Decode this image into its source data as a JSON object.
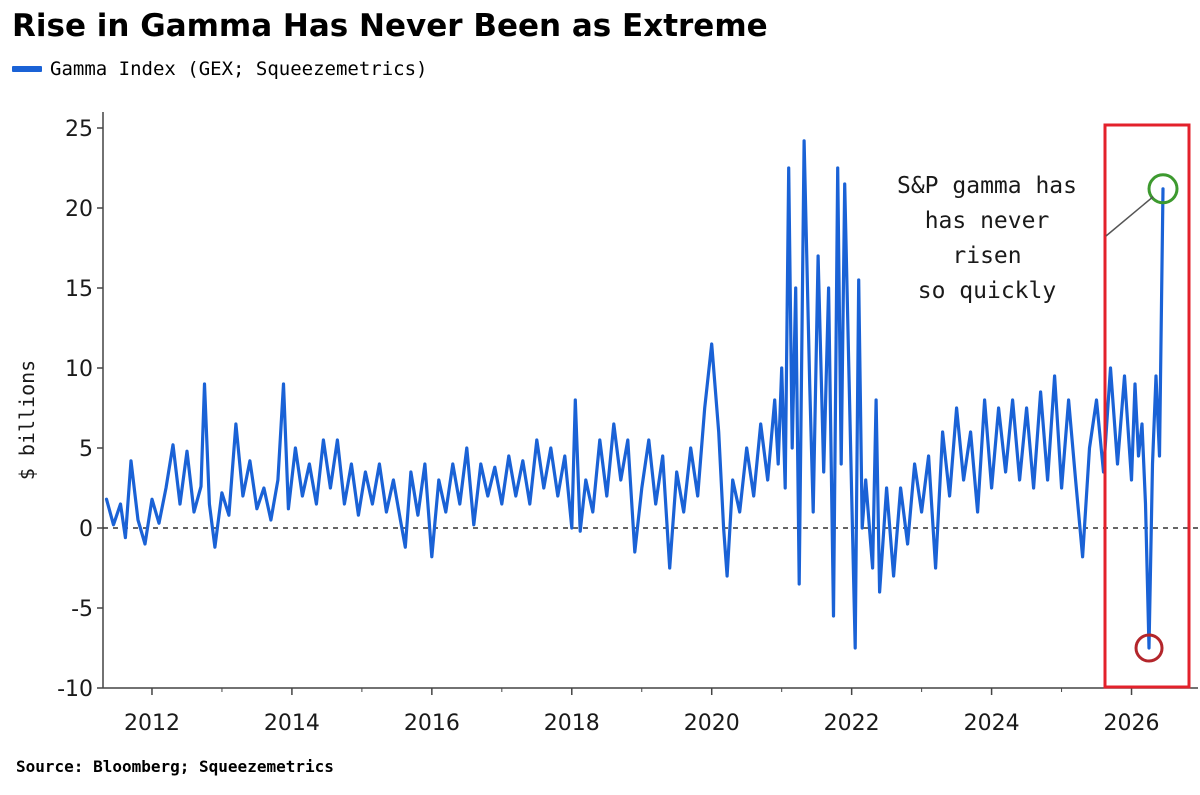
{
  "chart_data": {
    "type": "line",
    "title": "Rise in Gamma Has Never Been as Extreme",
    "ylabel": "$ billions",
    "xlabel": "",
    "ylim": [
      -10,
      26
    ],
    "xlim": [
      2011.3,
      2026.95
    ],
    "yticks": [
      "25",
      "20",
      "15",
      "10",
      "5",
      "0",
      "-5",
      "-10"
    ],
    "yticks_values": [
      25,
      20,
      15,
      10,
      5,
      0,
      -5,
      -10
    ],
    "xticks": [
      "2012",
      "2014",
      "2016",
      "2018",
      "2020",
      "2022",
      "2024",
      "2026"
    ],
    "xticks_values": [
      2012,
      2014,
      2016,
      2018,
      2020,
      2022,
      2024,
      2026
    ],
    "grid": false,
    "zero_line": "dashed",
    "legend_position": "top-left",
    "series": [
      {
        "name": "Gamma Index (GEX; Squeezemetrics)",
        "color": "#1a62d6",
        "points": [
          [
            2011.35,
            1.8
          ],
          [
            2011.45,
            0.2
          ],
          [
            2011.55,
            1.5
          ],
          [
            2011.62,
            -0.6
          ],
          [
            2011.7,
            4.2
          ],
          [
            2011.8,
            0.5
          ],
          [
            2011.9,
            -1.0
          ],
          [
            2012.0,
            1.8
          ],
          [
            2012.1,
            0.3
          ],
          [
            2012.2,
            2.5
          ],
          [
            2012.3,
            5.2
          ],
          [
            2012.4,
            1.5
          ],
          [
            2012.5,
            4.8
          ],
          [
            2012.6,
            1.0
          ],
          [
            2012.7,
            2.6
          ],
          [
            2012.75,
            9.0
          ],
          [
            2012.82,
            1.5
          ],
          [
            2012.9,
            -1.2
          ],
          [
            2013.0,
            2.2
          ],
          [
            2013.1,
            0.8
          ],
          [
            2013.2,
            6.5
          ],
          [
            2013.3,
            2.0
          ],
          [
            2013.4,
            4.2
          ],
          [
            2013.5,
            1.2
          ],
          [
            2013.6,
            2.5
          ],
          [
            2013.7,
            0.5
          ],
          [
            2013.8,
            3.0
          ],
          [
            2013.88,
            9.0
          ],
          [
            2013.95,
            1.2
          ],
          [
            2014.05,
            5.0
          ],
          [
            2014.15,
            2.0
          ],
          [
            2014.25,
            4.0
          ],
          [
            2014.35,
            1.5
          ],
          [
            2014.45,
            5.5
          ],
          [
            2014.55,
            2.5
          ],
          [
            2014.65,
            5.5
          ],
          [
            2014.75,
            1.5
          ],
          [
            2014.85,
            4.0
          ],
          [
            2014.95,
            0.8
          ],
          [
            2015.05,
            3.5
          ],
          [
            2015.15,
            1.5
          ],
          [
            2015.25,
            4.0
          ],
          [
            2015.35,
            1.0
          ],
          [
            2015.45,
            3.0
          ],
          [
            2015.55,
            0.5
          ],
          [
            2015.62,
            -1.2
          ],
          [
            2015.7,
            3.5
          ],
          [
            2015.8,
            0.8
          ],
          [
            2015.9,
            4.0
          ],
          [
            2016.0,
            -1.8
          ],
          [
            2016.1,
            3.0
          ],
          [
            2016.2,
            1.0
          ],
          [
            2016.3,
            4.0
          ],
          [
            2016.4,
            1.5
          ],
          [
            2016.5,
            5.0
          ],
          [
            2016.6,
            0.2
          ],
          [
            2016.7,
            4.0
          ],
          [
            2016.8,
            2.0
          ],
          [
            2016.9,
            3.8
          ],
          [
            2017.0,
            1.5
          ],
          [
            2017.1,
            4.5
          ],
          [
            2017.2,
            2.0
          ],
          [
            2017.3,
            4.2
          ],
          [
            2017.4,
            1.5
          ],
          [
            2017.5,
            5.5
          ],
          [
            2017.6,
            2.5
          ],
          [
            2017.7,
            5.0
          ],
          [
            2017.8,
            2.0
          ],
          [
            2017.9,
            4.5
          ],
          [
            2018.0,
            0.0
          ],
          [
            2018.05,
            8.0
          ],
          [
            2018.12,
            -0.2
          ],
          [
            2018.2,
            3.0
          ],
          [
            2018.3,
            1.0
          ],
          [
            2018.4,
            5.5
          ],
          [
            2018.5,
            2.0
          ],
          [
            2018.6,
            6.5
          ],
          [
            2018.7,
            3.0
          ],
          [
            2018.8,
            5.5
          ],
          [
            2018.9,
            -1.5
          ],
          [
            2019.0,
            2.5
          ],
          [
            2019.1,
            5.5
          ],
          [
            2019.2,
            1.5
          ],
          [
            2019.3,
            4.5
          ],
          [
            2019.4,
            -2.5
          ],
          [
            2019.5,
            3.5
          ],
          [
            2019.6,
            1.0
          ],
          [
            2019.7,
            5.0
          ],
          [
            2019.8,
            2.0
          ],
          [
            2019.9,
            7.5
          ],
          [
            2020.0,
            11.5
          ],
          [
            2020.1,
            6.0
          ],
          [
            2020.17,
            0.0
          ],
          [
            2020.22,
            -3.0
          ],
          [
            2020.3,
            3.0
          ],
          [
            2020.4,
            1.0
          ],
          [
            2020.5,
            5.0
          ],
          [
            2020.6,
            2.0
          ],
          [
            2020.7,
            6.5
          ],
          [
            2020.8,
            3.0
          ],
          [
            2020.9,
            8.0
          ],
          [
            2020.95,
            4.0
          ],
          [
            2021.0,
            10.0
          ],
          [
            2021.05,
            2.5
          ],
          [
            2021.1,
            22.5
          ],
          [
            2021.15,
            5.0
          ],
          [
            2021.2,
            15.0
          ],
          [
            2021.25,
            -3.5
          ],
          [
            2021.32,
            24.2
          ],
          [
            2021.4,
            9.0
          ],
          [
            2021.45,
            1.0
          ],
          [
            2021.52,
            17.0
          ],
          [
            2021.6,
            3.5
          ],
          [
            2021.67,
            15.0
          ],
          [
            2021.74,
            -5.5
          ],
          [
            2021.8,
            22.5
          ],
          [
            2021.85,
            4.0
          ],
          [
            2021.9,
            21.5
          ],
          [
            2022.0,
            2.0
          ],
          [
            2022.05,
            -7.5
          ],
          [
            2022.1,
            15.5
          ],
          [
            2022.15,
            0.0
          ],
          [
            2022.2,
            3.0
          ],
          [
            2022.3,
            -2.5
          ],
          [
            2022.35,
            8.0
          ],
          [
            2022.4,
            -4.0
          ],
          [
            2022.5,
            2.5
          ],
          [
            2022.6,
            -3.0
          ],
          [
            2022.7,
            2.5
          ],
          [
            2022.8,
            -1.0
          ],
          [
            2022.9,
            4.0
          ],
          [
            2023.0,
            1.0
          ],
          [
            2023.1,
            4.5
          ],
          [
            2023.2,
            -2.5
          ],
          [
            2023.3,
            6.0
          ],
          [
            2023.4,
            2.0
          ],
          [
            2023.5,
            7.5
          ],
          [
            2023.6,
            3.0
          ],
          [
            2023.7,
            6.0
          ],
          [
            2023.8,
            1.0
          ],
          [
            2023.9,
            8.0
          ],
          [
            2024.0,
            2.5
          ],
          [
            2024.1,
            7.5
          ],
          [
            2024.2,
            3.5
          ],
          [
            2024.3,
            8.0
          ],
          [
            2024.4,
            3.0
          ],
          [
            2024.5,
            7.5
          ],
          [
            2024.6,
            2.5
          ],
          [
            2024.7,
            8.5
          ],
          [
            2024.8,
            3.0
          ],
          [
            2024.9,
            9.5
          ],
          [
            2025.0,
            2.5
          ],
          [
            2025.1,
            8.0
          ],
          [
            2025.2,
            3.0
          ],
          [
            2025.3,
            -1.8
          ],
          [
            2025.4,
            5.0
          ],
          [
            2025.5,
            8.0
          ],
          [
            2025.6,
            3.5
          ],
          [
            2025.7,
            10.0
          ],
          [
            2025.8,
            4.0
          ],
          [
            2025.9,
            9.5
          ],
          [
            2026.0,
            3.0
          ],
          [
            2026.05,
            9.0
          ],
          [
            2026.1,
            4.5
          ],
          [
            2026.15,
            6.5
          ],
          [
            2026.2,
            1.5
          ],
          [
            2026.25,
            -7.5
          ],
          [
            2026.3,
            4.0
          ],
          [
            2026.35,
            9.5
          ],
          [
            2026.4,
            4.5
          ],
          [
            2026.45,
            21.2
          ]
        ]
      }
    ],
    "annotation": {
      "lines": [
        "S&P gamma has",
        "has never",
        "risen",
        "so quickly"
      ],
      "high_marker_value": [
        2026.45,
        21.2
      ],
      "low_marker_value": [
        2026.25,
        -7.5
      ],
      "high_marker_color": "#3d9a2f",
      "low_marker_color": "#b3262b",
      "box_color": "#e3212b"
    }
  },
  "source": "Source: Bloomberg; Squeezemetrics"
}
